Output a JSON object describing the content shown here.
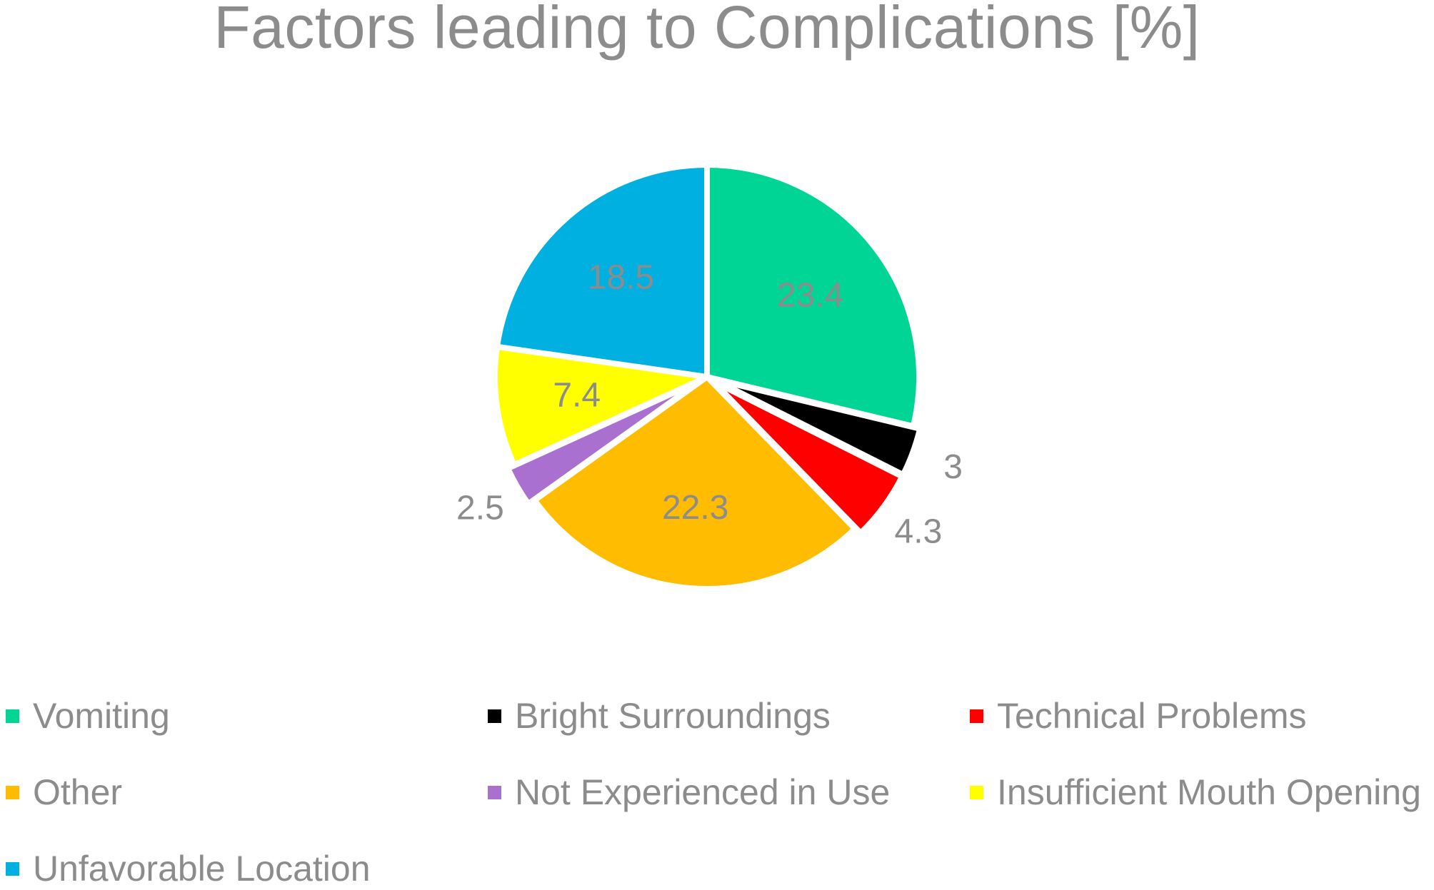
{
  "chart_data": {
    "type": "pie",
    "title": "Factors leading to Complications [%]",
    "start_angle_deg": 0,
    "direction": "clockwise",
    "slices": [
      {
        "label": "Vomiting",
        "value": 23.4,
        "value_label": "23.4",
        "color": "#00d595",
        "label_placement": "inside"
      },
      {
        "label": "Bright Surroundings",
        "value": 3.0,
        "value_label": "3",
        "color": "#000000",
        "label_placement": "outside"
      },
      {
        "label": "Technical Problems",
        "value": 4.3,
        "value_label": "4.3",
        "color": "#ff0000",
        "label_placement": "outside"
      },
      {
        "label": "Other",
        "value": 22.3,
        "value_label": "22.3",
        "color": "#ffbc00",
        "label_placement": "inside"
      },
      {
        "label": "Not Experienced in Use",
        "value": 2.5,
        "value_label": "2.5",
        "color": "#a970d0",
        "label_placement": "outside"
      },
      {
        "label": "Insufficient Mouth Opening",
        "value": 7.4,
        "value_label": "7.4",
        "color": "#ffff00",
        "label_placement": "inside"
      },
      {
        "label": "Unfavorable Location",
        "value": 18.5,
        "value_label": "18.5",
        "color": "#00b0e0",
        "label_placement": "inside"
      }
    ],
    "legend": {
      "position": "bottom",
      "columns": 3
    },
    "label_color": "#8c8c8c"
  }
}
